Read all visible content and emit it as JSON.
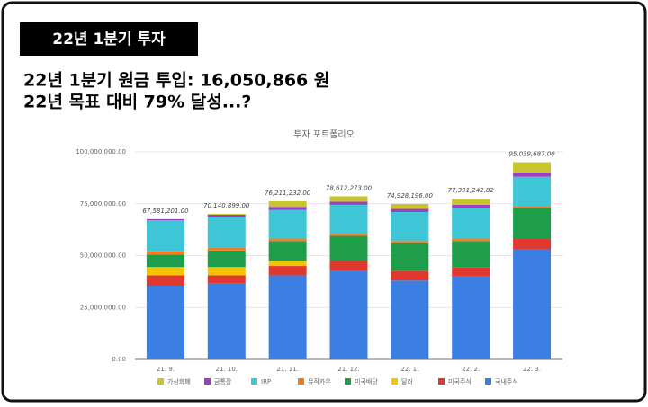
{
  "slide": {
    "badge": "22년 1분기 투자",
    "lines": [
      "22년 1분기 원금 투입: 16,050,866 원",
      "22년 목표 대비 79% 달성...?"
    ]
  },
  "chart_data": {
    "type": "stacked_bar",
    "title": "투자 포트폴리오",
    "categories": [
      "21. 9.",
      "21. 10.",
      "21. 11.",
      "21. 12.",
      "22. 1.",
      "22. 2.",
      "22. 3."
    ],
    "series": [
      {
        "name": "가상화폐",
        "color": "#c8c42c",
        "values": [
          0,
          400000,
          2700000,
          2600000,
          2400000,
          2900000,
          5000000
        ]
      },
      {
        "name": "금통장",
        "color": "#9b3fc7",
        "values": [
          600000,
          1000000,
          1500000,
          1500000,
          1500000,
          1500000,
          2000000
        ]
      },
      {
        "name": "IRP",
        "color": "#3fc6d6",
        "values": [
          15000000,
          15000000,
          14000000,
          14000000,
          14000000,
          15000000,
          14000000
        ]
      },
      {
        "name": "뮤직카우",
        "color": "#f57c1f",
        "values": [
          1500000,
          1200000,
          1000000,
          1000000,
          1000000,
          1000000,
          1000000
        ]
      },
      {
        "name": "미국배당",
        "color": "#1e9e4a",
        "values": [
          6000000,
          8000000,
          9500000,
          12000000,
          13500000,
          12500000,
          15000000
        ]
      },
      {
        "name": "달러",
        "color": "#f5c400",
        "values": [
          4000000,
          4000000,
          2500000,
          0,
          0,
          0,
          0
        ]
      },
      {
        "name": "미국주식",
        "color": "#e0382e",
        "values": [
          5000000,
          4000000,
          4500000,
          5000000,
          4500000,
          4500000,
          5000000
        ]
      },
      {
        "name": "국내주식",
        "color": "#3b7fe3",
        "values": [
          35500000,
          36500000,
          40500000,
          42500000,
          38000000,
          40000000,
          53000000
        ]
      }
    ],
    "totals": [
      67581201,
      70140899,
      76211232,
      78612273,
      74928196,
      77391242.82,
      95039687
    ],
    "total_labels": [
      "67,581,201.00",
      "70,140,899.00",
      "76,211,232.00",
      "78,612,273.00",
      "74,928,196.00",
      "77,391,242.82",
      "95,039,687.00"
    ],
    "ylim": [
      0,
      100000000
    ],
    "yticks": [
      {
        "value": 0,
        "label": "0.00"
      },
      {
        "value": 25000000,
        "label": "25,000,000.00"
      },
      {
        "value": 50000000,
        "label": "50,000,000.00"
      },
      {
        "value": 75000000,
        "label": "75,000,000.00"
      },
      {
        "value": 100000000,
        "label": "100,000,000.00"
      }
    ],
    "grid": true
  }
}
